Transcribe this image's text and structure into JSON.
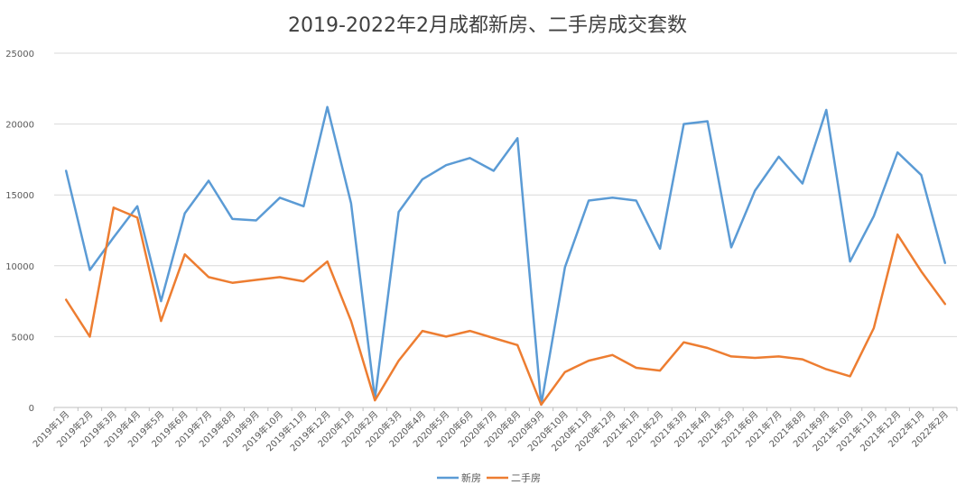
{
  "chart_data": {
    "type": "line",
    "title": "2019-2022年2月成都新房、二手房成交套数",
    "xlabel": "",
    "ylabel": "",
    "ylim": [
      0,
      25000
    ],
    "yticks": [
      "0",
      "5000",
      "10000",
      "15000",
      "20000",
      "25000"
    ],
    "grid": true,
    "legend_position": "bottom",
    "categories": [
      "2019年1月",
      "2019年2月",
      "2019年3月",
      "2019年4月",
      "2019年5月",
      "2019年6月",
      "2019年7月",
      "2019年8月",
      "2019年9月",
      "2019年10月",
      "2019年11月",
      "2019年12月",
      "2020年1月",
      "2020年2月",
      "2020年3月",
      "2020年4月",
      "2020年5月",
      "2020年6月",
      "2020年7月",
      "2020年8月",
      "2020年9月",
      "2020年10月",
      "2020年11月",
      "2020年12月",
      "2021年1月",
      "2021年2月",
      "2021年3月",
      "2021年4月",
      "2021年5月",
      "2021年6月",
      "2021年7月",
      "2021年8月",
      "2021年9月",
      "2021年10月",
      "2021年11月",
      "2021年12月",
      "2022年1月",
      "2022年2月"
    ],
    "series": [
      {
        "name": "新房",
        "color": "#5b9bd5",
        "values": [
          16700,
          9700,
          12000,
          14200,
          7500,
          13700,
          16000,
          13300,
          13200,
          14800,
          14200,
          21200,
          14400,
          600,
          13800,
          16100,
          17100,
          17600,
          16700,
          19000,
          200,
          9900,
          14600,
          14800,
          14600,
          11200,
          20000,
          20200,
          11300,
          15300,
          17700,
          15800,
          21000,
          10300,
          13500,
          18000,
          16400,
          10200
        ]
      },
      {
        "name": "二手房",
        "color": "#ed7d31",
        "values": [
          7600,
          5000,
          14100,
          13400,
          6100,
          10800,
          9200,
          8800,
          9000,
          9200,
          8900,
          10300,
          6100,
          500,
          3300,
          5400,
          5000,
          5400,
          4900,
          4400,
          200,
          2500,
          3300,
          3700,
          2800,
          2600,
          4600,
          4200,
          3600,
          3500,
          3600,
          3400,
          2700,
          2200,
          5600,
          12200,
          9600,
          7300
        ]
      }
    ]
  }
}
